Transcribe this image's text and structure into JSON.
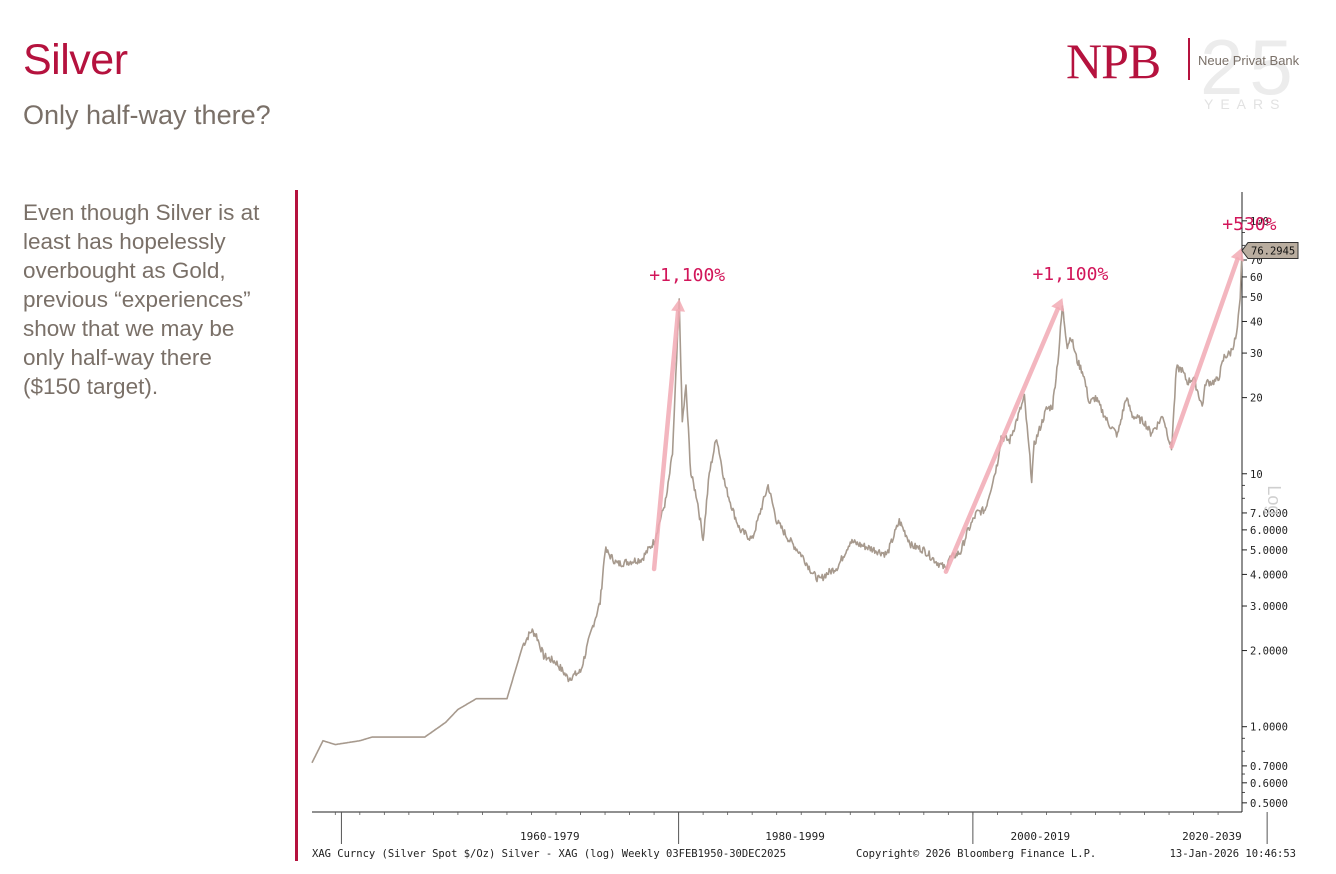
{
  "header": {
    "title": "Silver",
    "subtitle": "Only half-way there?"
  },
  "logo": {
    "name": "NPB",
    "bank_name": "Neue Privat Bank",
    "anniversary": "25",
    "anniversary_label": "YEARS",
    "brand_color": "#b5123e"
  },
  "commentary": {
    "text": "Even though Silver is at least has hopelessly overbought as Gold, previous “experiences” show that we may be only half-way there ($150 target)."
  },
  "chart_data": {
    "type": "line",
    "scale": "log",
    "series": [
      {
        "color": "#a79a8e",
        "x": [
          1950.1,
          1951,
          1952,
          1954,
          1955,
          1958,
          1959.3,
          1961,
          1962,
          1963.5,
          1964,
          1965,
          1966,
          1967.3,
          1968,
          1968.4,
          1969,
          1970,
          1971,
          1972,
          1973,
          1973.6,
          1974,
          1975,
          1976,
          1977,
          1978,
          1979,
          1979.5,
          1980.05,
          1980.3,
          1980.6,
          1981,
          1981.5,
          1982,
          1982.5,
          1983.1,
          1983.8,
          1984.5,
          1985,
          1986,
          1987.3,
          1988,
          1989,
          1990,
          1991,
          1991.5,
          1992,
          1993,
          1994,
          1995,
          1996,
          1997,
          1998,
          1999,
          2000,
          2001,
          2001.8,
          2002,
          2003,
          2003.5,
          2004.3,
          2005,
          2006,
          2006.3,
          2007,
          2008.2,
          2008.8,
          2009,
          2010,
          2010.5,
          2011.0,
          2011.3,
          2011.7,
          2012,
          2012.5,
          2013,
          2013.5,
          2014,
          2015,
          2015.8,
          2016.5,
          2017,
          2018,
          2018.5,
          2019,
          2019.5,
          2020.2,
          2020.6,
          2021,
          2021.5,
          2022,
          2022.7,
          2023,
          2023.5,
          2024,
          2024.5,
          2025,
          2025.5,
          2025.8,
          2025.95
        ],
        "values": [
          0.72,
          0.88,
          0.85,
          0.88,
          0.91,
          0.91,
          0.91,
          1.04,
          1.17,
          1.29,
          1.29,
          1.29,
          1.29,
          2.1,
          2.4,
          2.3,
          1.9,
          1.8,
          1.55,
          1.65,
          2.5,
          3.1,
          5.0,
          4.4,
          4.5,
          4.6,
          5.4,
          8.0,
          12.0,
          48.0,
          16.0,
          22.0,
          10.0,
          8.0,
          5.5,
          10.0,
          14.0,
          9.0,
          7.0,
          6.0,
          5.5,
          9.0,
          6.5,
          5.5,
          4.8,
          4.0,
          3.8,
          4.0,
          4.3,
          5.4,
          5.2,
          5.0,
          4.8,
          6.5,
          5.2,
          5.0,
          4.5,
          4.2,
          4.6,
          4.9,
          5.8,
          7.0,
          7.2,
          11.0,
          14.0,
          13.5,
          20.0,
          9.5,
          13.0,
          18.0,
          18.5,
          30.0,
          46.0,
          32.0,
          35.0,
          28.0,
          25.0,
          19.0,
          20.0,
          16.0,
          14.2,
          20.0,
          17.0,
          16.0,
          14.5,
          15.5,
          17.0,
          12.5,
          26.0,
          26.0,
          23.0,
          24.0,
          18.5,
          23.0,
          23.0,
          23.5,
          29.0,
          30.0,
          35.0,
          48.0,
          76.2945
        ]
      }
    ],
    "arrows": [
      {
        "label": "+1,100%",
        "from": [
          1978.0,
          4.2
        ],
        "to": [
          1980.05,
          49.0
        ]
      },
      {
        "label": "+1,100%",
        "from": [
          2001.8,
          4.1
        ],
        "to": [
          2011.3,
          49.5
        ]
      },
      {
        "label": "+530%",
        "from": [
          2020.2,
          12.8
        ],
        "to": [
          2025.9,
          78.0
        ]
      }
    ],
    "last_value_label": "76.2945",
    "xlim": [
      1950.1,
      2025.95
    ],
    "ylim": [
      0.46,
      130
    ],
    "yticks_major": [
      "100",
      "70",
      "60",
      "50",
      "40",
      "30",
      "20",
      "10",
      "7.0000",
      "6.0000",
      "5.0000",
      "4.0000",
      "3.0000",
      "2.0000",
      "1.0000",
      "0.7000",
      "0.6000",
      "0.5000"
    ],
    "ytick_values": [
      100,
      70,
      60,
      50,
      40,
      30,
      20,
      10,
      7,
      6,
      5,
      4,
      3,
      2,
      1,
      0.7,
      0.6,
      0.5
    ],
    "x_decade_labels": [
      "1960-1979",
      "1980-1999",
      "2000-2019",
      "2020-2039"
    ],
    "x_decade_label_positions": [
      1969.5,
      1989.5,
      2009.5,
      2023.5
    ],
    "x_major_ticks": [
      1952.5,
      1980.0,
      2004.0,
      2028.0
    ],
    "axis_side_label": "Log",
    "source_left": "XAG Curncy (Silver Spot  $/Oz) Silver - XAG (log) Weekly 03FEB1950-30DEC2025",
    "source_center": "Copyright© 2026 Bloomberg Finance L.P.",
    "source_right": "13-Jan-2026 10:46:53",
    "arrow_color": "#f2aab4",
    "label_color": "#d2165a",
    "grid": false
  }
}
